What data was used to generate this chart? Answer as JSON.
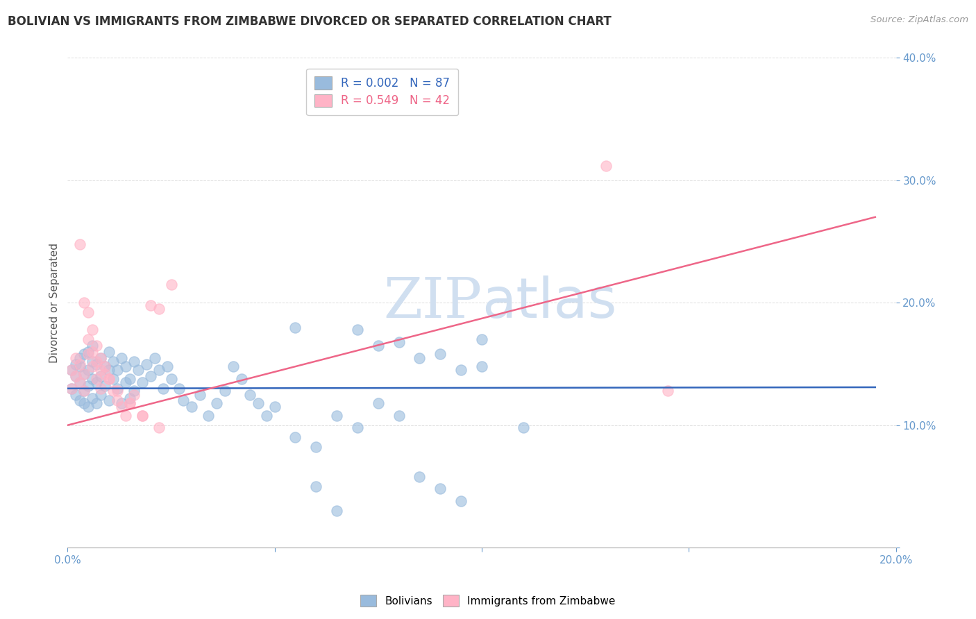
{
  "title": "BOLIVIAN VS IMMIGRANTS FROM ZIMBABWE DIVORCED OR SEPARATED CORRELATION CHART",
  "source": "Source: ZipAtlas.com",
  "ylabel": "Divorced or Separated",
  "xlim": [
    0.0,
    0.2
  ],
  "ylim": [
    0.0,
    0.4
  ],
  "xticks": [
    0.0,
    0.05,
    0.1,
    0.15,
    0.2
  ],
  "xticklabels": [
    "0.0%",
    "",
    "",
    "",
    "20.0%"
  ],
  "yticks": [
    0.0,
    0.1,
    0.2,
    0.3,
    0.4
  ],
  "yticklabels": [
    "",
    "10.0%",
    "20.0%",
    "30.0%",
    "40.0%"
  ],
  "blue_color": "#99BBDD",
  "pink_color": "#FFB3C6",
  "blue_line_color": "#3366BB",
  "pink_line_color": "#EE6688",
  "legend_R1": "R = 0.002",
  "legend_N1": "N = 87",
  "legend_R2": "R = 0.549",
  "legend_N2": "N = 42",
  "blue_scatter_x": [
    0.001,
    0.001,
    0.002,
    0.002,
    0.002,
    0.003,
    0.003,
    0.003,
    0.003,
    0.004,
    0.004,
    0.004,
    0.004,
    0.005,
    0.005,
    0.005,
    0.005,
    0.006,
    0.006,
    0.006,
    0.006,
    0.007,
    0.007,
    0.007,
    0.008,
    0.008,
    0.008,
    0.009,
    0.009,
    0.01,
    0.01,
    0.01,
    0.011,
    0.011,
    0.012,
    0.012,
    0.013,
    0.013,
    0.014,
    0.014,
    0.015,
    0.015,
    0.016,
    0.016,
    0.017,
    0.018,
    0.019,
    0.02,
    0.021,
    0.022,
    0.023,
    0.024,
    0.025,
    0.027,
    0.028,
    0.03,
    0.032,
    0.034,
    0.036,
    0.038,
    0.04,
    0.042,
    0.044,
    0.046,
    0.048,
    0.05,
    0.055,
    0.06,
    0.065,
    0.07,
    0.075,
    0.08,
    0.085,
    0.09,
    0.095,
    0.1,
    0.055,
    0.07,
    0.08,
    0.09,
    0.1,
    0.11,
    0.075,
    0.085,
    0.095,
    0.06,
    0.065
  ],
  "blue_scatter_y": [
    0.13,
    0.145,
    0.125,
    0.14,
    0.15,
    0.12,
    0.135,
    0.148,
    0.155,
    0.128,
    0.142,
    0.158,
    0.118,
    0.132,
    0.145,
    0.16,
    0.115,
    0.138,
    0.152,
    0.122,
    0.165,
    0.135,
    0.15,
    0.118,
    0.14,
    0.155,
    0.125,
    0.148,
    0.132,
    0.145,
    0.16,
    0.12,
    0.138,
    0.152,
    0.13,
    0.145,
    0.118,
    0.155,
    0.135,
    0.148,
    0.122,
    0.138,
    0.152,
    0.128,
    0.145,
    0.135,
    0.15,
    0.14,
    0.155,
    0.145,
    0.13,
    0.148,
    0.138,
    0.13,
    0.12,
    0.115,
    0.125,
    0.108,
    0.118,
    0.128,
    0.148,
    0.138,
    0.125,
    0.118,
    0.108,
    0.115,
    0.09,
    0.082,
    0.108,
    0.098,
    0.118,
    0.108,
    0.058,
    0.048,
    0.038,
    0.17,
    0.18,
    0.178,
    0.168,
    0.158,
    0.148,
    0.098,
    0.165,
    0.155,
    0.145,
    0.05,
    0.03
  ],
  "pink_scatter_x": [
    0.001,
    0.001,
    0.002,
    0.002,
    0.003,
    0.003,
    0.004,
    0.004,
    0.005,
    0.005,
    0.006,
    0.006,
    0.007,
    0.007,
    0.008,
    0.008,
    0.009,
    0.01,
    0.011,
    0.012,
    0.013,
    0.014,
    0.015,
    0.016,
    0.018,
    0.02,
    0.022,
    0.025,
    0.003,
    0.004,
    0.005,
    0.006,
    0.007,
    0.008,
    0.009,
    0.01,
    0.012,
    0.015,
    0.018,
    0.022,
    0.13,
    0.145
  ],
  "pink_scatter_y": [
    0.13,
    0.145,
    0.14,
    0.155,
    0.135,
    0.15,
    0.128,
    0.142,
    0.158,
    0.17,
    0.148,
    0.16,
    0.138,
    0.152,
    0.145,
    0.13,
    0.142,
    0.138,
    0.128,
    0.12,
    0.115,
    0.108,
    0.118,
    0.125,
    0.108,
    0.198,
    0.195,
    0.215,
    0.248,
    0.2,
    0.192,
    0.178,
    0.165,
    0.155,
    0.148,
    0.138,
    0.128,
    0.118,
    0.108,
    0.098,
    0.312,
    0.128
  ],
  "blue_trend_x": [
    0.0,
    0.195
  ],
  "blue_trend_y": [
    0.13,
    0.131
  ],
  "pink_trend_x": [
    0.0,
    0.195
  ],
  "pink_trend_y": [
    0.1,
    0.27
  ],
  "background_color": "#FFFFFF",
  "grid_color": "#DDDDDD",
  "title_color": "#333333",
  "axis_tick_color": "#6699CC",
  "watermark_color": "#D0DFF0"
}
